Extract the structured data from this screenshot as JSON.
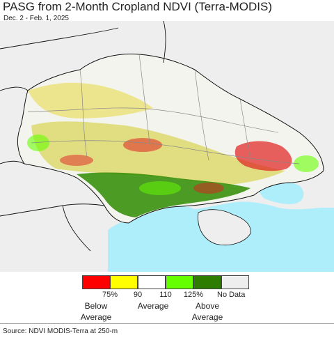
{
  "header": {
    "title": "PASG from 2-Month Cropland NDVI (Terra-MODIS)",
    "subtitle": "Dec. 2 - Feb. 1, 2025"
  },
  "legend": {
    "swatches": [
      {
        "name": "legend-swatch-below-75",
        "color": "#ff0000"
      },
      {
        "name": "legend-swatch-75-90",
        "color": "#ffff00"
      },
      {
        "name": "legend-swatch-90-110",
        "color": "#ffffff"
      },
      {
        "name": "legend-swatch-110-125",
        "color": "#66ff00"
      },
      {
        "name": "legend-swatch-above-125",
        "color": "#2e7d00"
      },
      {
        "name": "legend-swatch-no-data",
        "color": "#eeeeee"
      }
    ],
    "ticks": [
      "75%",
      "90",
      "110",
      "125%"
    ],
    "below_label_1": "Below",
    "below_label_2": "Average",
    "average_label": "Average",
    "above_label_1": "Above",
    "above_label_2": "Average",
    "no_data_label": "No Data"
  },
  "colors": {
    "sea": "#aeeefa",
    "nodata_land": "#eeeeee",
    "outside_land": "#f2f2f2",
    "border": "#111111"
  },
  "footer": {
    "source": "Source: NDVI MODIS-Terra at 250-m"
  }
}
